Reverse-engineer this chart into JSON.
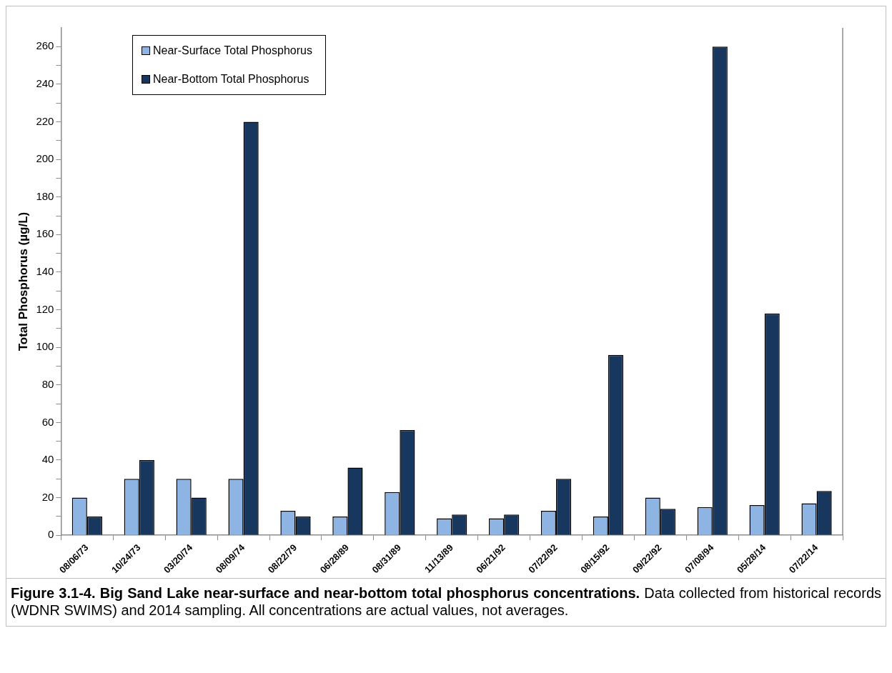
{
  "chart_data": {
    "type": "bar",
    "title": "Figure 3.1-4.  Big Sand Lake near-surface and near-bottom total phosphorus concentrations.",
    "ylabel": "Total Phosphorus (µg/L)",
    "annotations": [
      "Data collected from historical records (WDNR SWIMS) and 2014 sampling.  All concentrations are actual values, not averages."
    ],
    "categories": [
      "08/06/73",
      "10/24/73",
      "03/20/74",
      "08/09/74",
      "08/22/79",
      "06/28/89",
      "08/31/89",
      "11/13/89",
      "06/21/92",
      "07/22/92",
      "08/15/92",
      "09/22/92",
      "07/08/94",
      "05/28/14",
      "07/22/14"
    ],
    "series": [
      {
        "name": "Near-Surface Total Phosphorus",
        "color": "#8eb4e3",
        "values": [
          20,
          30,
          30,
          30,
          13,
          10,
          23,
          9,
          9,
          13,
          10,
          20,
          15,
          16,
          17
        ]
      },
      {
        "name": "Near-Bottom Total Phosphorus",
        "color": "#17375e",
        "values": [
          10,
          40,
          20,
          220,
          10,
          36,
          56,
          11,
          11,
          30,
          96,
          14,
          260,
          118,
          23.5
        ]
      }
    ],
    "ylim": [
      0,
      270
    ],
    "yticks": [
      0,
      {
        "value": 10,
        "label": null
      },
      20,
      {
        "value": 30,
        "label": null
      },
      40,
      {
        "value": 50,
        "label": null
      },
      60,
      {
        "value": 70,
        "label": null
      },
      80,
      {
        "value": 90,
        "label": null
      },
      100,
      {
        "value": 110,
        "label": null
      },
      120,
      {
        "value": 130,
        "label": null
      },
      140,
      {
        "value": 150,
        "label": null
      },
      160,
      {
        "value": 170,
        "label": null
      },
      180,
      {
        "value": 190,
        "label": null
      },
      200,
      {
        "value": 210,
        "label": null
      },
      220,
      {
        "value": 230,
        "label": null
      },
      240,
      {
        "value": 250,
        "label": null
      },
      260
    ],
    "grid": false,
    "legend": "top left"
  }
}
